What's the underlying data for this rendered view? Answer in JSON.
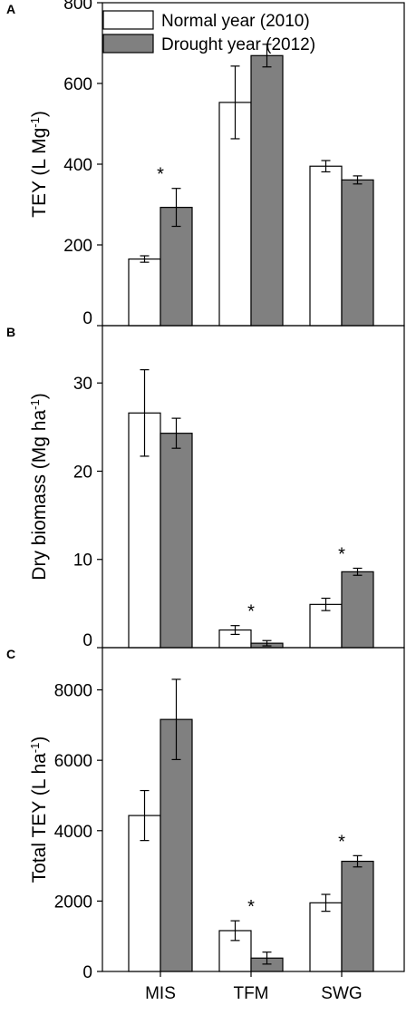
{
  "chart_data": [
    {
      "type": "bar",
      "panel_label": "A",
      "ylabel": "TEY (L Mg",
      "ylabel_sup": "-1",
      "ylabel_end": ")",
      "categories": [
        "MIS",
        "TFM",
        "SWG"
      ],
      "yticks": [
        0,
        200,
        400,
        600,
        800
      ],
      "ylim": [
        0,
        800
      ],
      "series": [
        {
          "name": "Normal year (2010)",
          "values": [
            165,
            553,
            395
          ],
          "errors": [
            8,
            90,
            14
          ]
        },
        {
          "name": "Drought year (2012)",
          "values": [
            293,
            669,
            361
          ],
          "errors": [
            47,
            28,
            10
          ]
        }
      ],
      "significance": [
        {
          "category": "MIS",
          "text": "*"
        }
      ],
      "legend": "top-left",
      "grid": false
    },
    {
      "type": "bar",
      "panel_label": "B",
      "ylabel": "Dry biomass (Mg ha",
      "ylabel_sup": "-1",
      "ylabel_end": ")",
      "categories": [
        "MIS",
        "TFM",
        "SWG"
      ],
      "yticks": [
        0,
        10,
        20,
        30
      ],
      "ylim": [
        0,
        36.5
      ],
      "series": [
        {
          "name": "Normal year (2010)",
          "values": [
            26.6,
            2.0,
            4.9
          ],
          "errors": [
            4.9,
            0.5,
            0.7
          ]
        },
        {
          "name": "Drought year (2012)",
          "values": [
            24.3,
            0.5,
            8.6
          ],
          "errors": [
            1.7,
            0.3,
            0.4
          ]
        }
      ],
      "significance": [
        {
          "category": "TFM",
          "text": "*"
        },
        {
          "category": "SWG",
          "text": "*"
        }
      ],
      "grid": false
    },
    {
      "type": "bar",
      "panel_label": "C",
      "ylabel": "Total TEY (L ha",
      "ylabel_sup": "-1",
      "ylabel_end": ")",
      "categories": [
        "MIS",
        "TFM",
        "SWG"
      ],
      "yticks": [
        0,
        2000,
        4000,
        6000,
        8000
      ],
      "ylim": [
        0,
        9200
      ],
      "series": [
        {
          "name": "Normal year (2010)",
          "values": [
            4430,
            1160,
            1950
          ],
          "errors": [
            710,
            280,
            240
          ]
        },
        {
          "name": "Drought year (2012)",
          "values": [
            7160,
            380,
            3130
          ],
          "errors": [
            1140,
            170,
            160
          ]
        }
      ],
      "significance": [
        {
          "category": "TFM",
          "text": "*"
        },
        {
          "category": "SWG",
          "text": "*"
        }
      ],
      "grid": false
    }
  ],
  "colors": {
    "normal_fill": "#ffffff",
    "drought_fill": "#808080",
    "stroke": "#000000"
  }
}
